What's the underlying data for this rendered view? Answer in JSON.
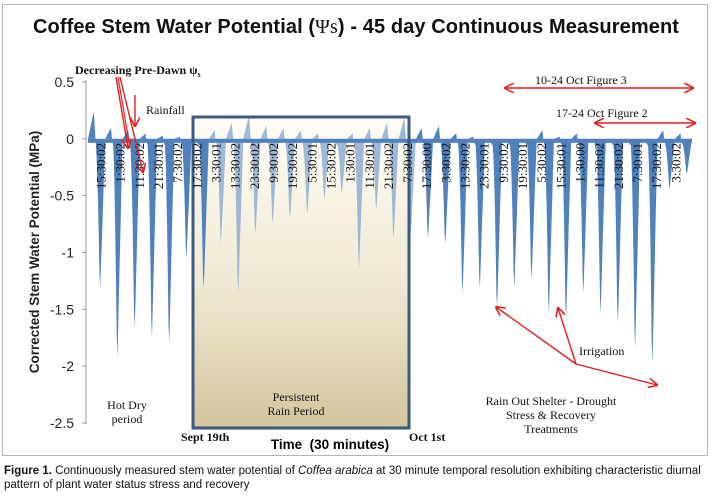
{
  "figure": {
    "title_prefix": "Coffee Stem Water Potential (",
    "title_psi": "Ψs",
    "title_suffix": ") - 45 day Continuous Measurement",
    "caption_label": "Figure 1.",
    "caption_text_1": " Continuously measured stem water potential of ",
    "caption_species": "Coffea arabica",
    "caption_text_2": " at 30 minute temporal resolution exhibiting characteristic diurnal pattern of plant water status stress and recovery"
  },
  "chart_data": {
    "type": "area",
    "title": "Coffee Stem Water Potential (Ψs) - 45 day Continuous Measurement",
    "xlabel": "Time  (30 minutes)",
    "ylabel": "Corrected Stem Water Potential (MPa)",
    "ylim": [
      -2.5,
      0.5
    ],
    "yticks": [
      0.5,
      0,
      -0.5,
      -1,
      -1.5,
      -2,
      -2.5
    ],
    "ytick_labels": [
      "0.5",
      "0",
      "-0.5",
      "-1",
      "-1.5",
      "-2",
      "-2.5"
    ],
    "xtick_labels": [
      "15:30:02",
      "1:30:02",
      "11:30:02",
      "21:30:01",
      "7:30:02",
      "17:30:02",
      "3:30:01",
      "13:30:02",
      "23:30:02",
      "9:30:02",
      "19:30:02",
      "5:30:01",
      "15:30:02",
      "1:30:01",
      "11:30:01",
      "21:30:02",
      "7:30:02",
      "17:30:00",
      "3:30:02",
      "13:30:02",
      "23:30:01",
      "9:30:02",
      "19:30:01",
      "5:30:02",
      "15:30:01",
      "1:30:00",
      "11:30:02",
      "21:30:02",
      "7:30:01",
      "17:30:02",
      "3:30:02"
    ],
    "grid": false,
    "series_color": "#4f81bd",
    "annotation_color": "#e02020",
    "shaded_period_color_top": "#fdfbf3",
    "shaded_period_color_bottom": "#d6c9a3",
    "shaded_box_color": "#3d5a80",
    "daily_minima_MPa": [
      -1.5,
      -2.2,
      -1.9,
      -2.0,
      -2.05,
      -1.2,
      -1.5,
      -1.05,
      -1.55,
      -0.95,
      -0.85,
      -0.8,
      -0.75,
      -0.6,
      -0.55,
      -1.3,
      -0.7,
      -1.0,
      -0.95,
      -1.0,
      -1.05,
      -1.55,
      -1.5,
      -1.7,
      -1.5,
      -1.4,
      -1.75,
      -1.8,
      -1.55,
      -1.75,
      -1.85,
      -2.1,
      -2.25,
      -0.5,
      -0.35
    ],
    "daily_maxima_MPa": [
      0.25,
      0.1,
      0.08,
      0.05,
      0.03,
      0.02,
      0.0,
      0.08,
      0.15,
      0.22,
      0.12,
      0.1,
      0.08,
      0.05,
      0.0,
      0.05,
      0.1,
      0.15,
      0.2,
      0.1,
      0.12,
      0.05,
      0.02,
      0.0,
      0.0,
      0.0,
      0.08,
      0.02,
      0.05,
      0.0,
      0.0,
      0.0,
      0.0,
      0.08,
      0.05
    ],
    "annotations": {
      "pre_dawn": "Decreasing Pre-Dawn ψ",
      "pre_dawn_sub": "s",
      "rainfall": "Rainfall",
      "hot_dry_1": "Hot Dry",
      "hot_dry_2": "period",
      "rain_period_1": "Persistent",
      "rain_period_2": "Rain Period",
      "sept": "Sept 19th",
      "oct": "Oct 1st",
      "fig3": "10-24 Oct Figure 3",
      "fig2": "17-24 Oct Figure 2",
      "irrigation": "Irrigation",
      "shelter_1": "Rain Out Shelter - Drought",
      "shelter_2": "Stress & Recovery",
      "shelter_3": "Treatments"
    }
  }
}
